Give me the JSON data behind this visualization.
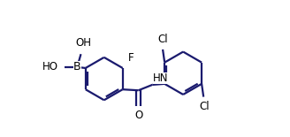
{
  "bg_color": "#ffffff",
  "bond_color": "#1a1a6e",
  "text_color": "#000000",
  "line_width": 1.6,
  "fig_width": 3.28,
  "fig_height": 1.55,
  "dpi": 100,
  "labels": {
    "OH_top": "OH",
    "HO_left": "HO",
    "B": "B",
    "F": "F",
    "HN": "HN",
    "O": "O",
    "Cl_top": "Cl",
    "Cl_bottom": "Cl"
  },
  "font_size": 8.5
}
